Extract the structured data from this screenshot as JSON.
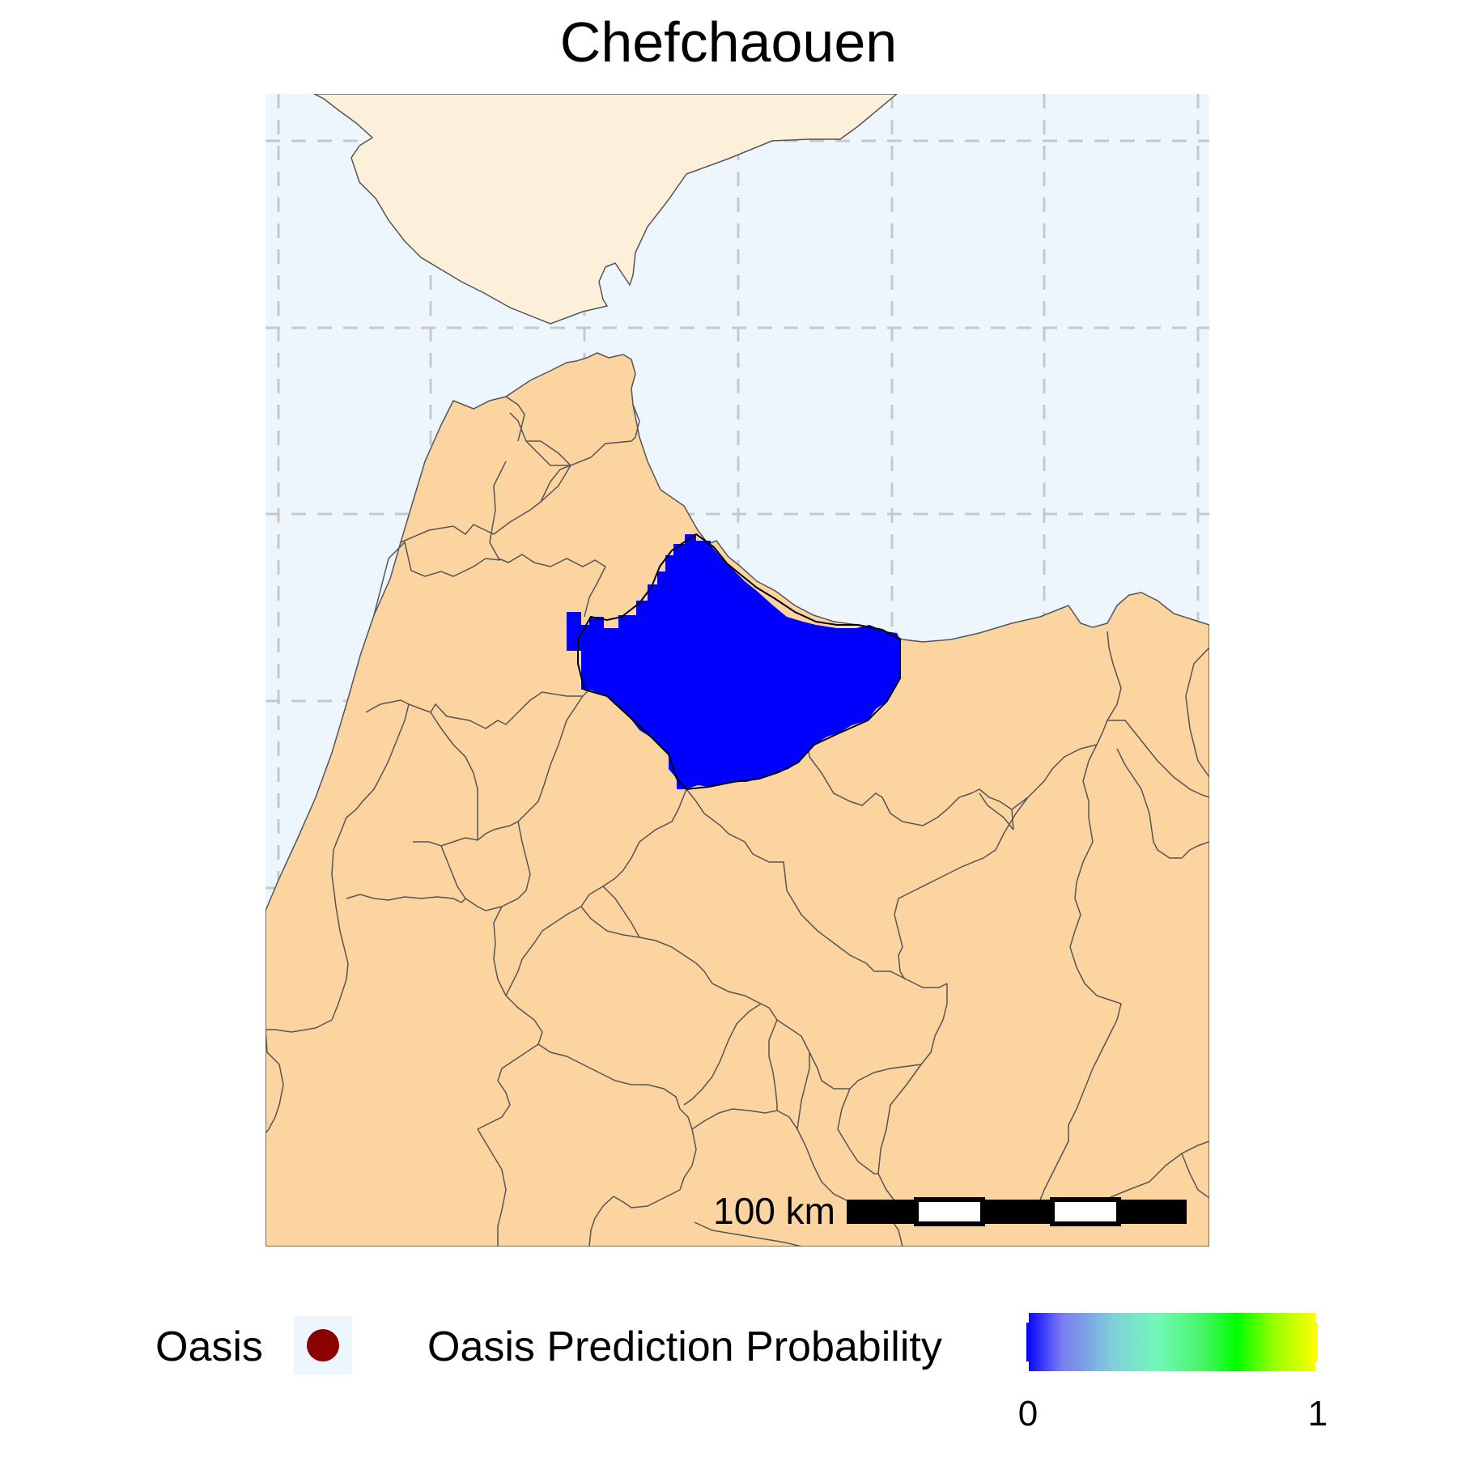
{
  "title": "Chefchaouen",
  "colors": {
    "sea": "#eef6fd",
    "land_focus": "#fcd49f",
    "land_other": "#fdf0db",
    "borders": "#555555",
    "prediction": "#0000ff",
    "oasis_marker": "#8b0000",
    "graticule": "#c8c8c8"
  },
  "scale_bar": {
    "label": "100 km",
    "segments": 5
  },
  "legend": {
    "oasis_label": "Oasis",
    "probability_label": "Oasis Prediction Probability",
    "colorbar_min": "0",
    "colorbar_max": "1",
    "colorbar_colors": [
      "#0000ff",
      "#72f7b8",
      "#00ff00",
      "#ffff00"
    ]
  }
}
